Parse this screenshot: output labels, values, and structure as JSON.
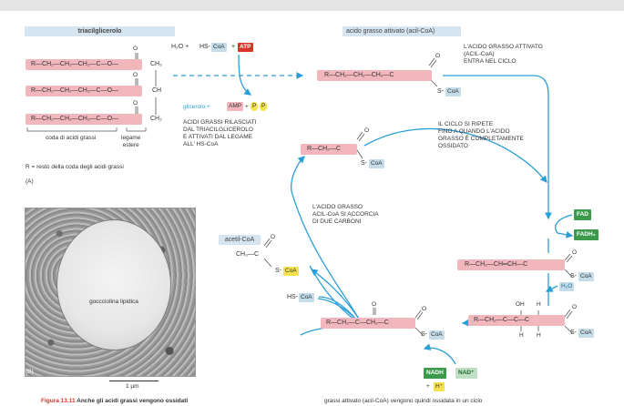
{
  "headers": {
    "triacylglycerol": "triacilglicerolo",
    "activated": "acido grasso attivato (acil-CoA)"
  },
  "tg": {
    "chain": "R—CH₂—CH₂—CH₂—C—O—",
    "ch2_top": "CH₂",
    "ch": "CH",
    "ch2_bottom": "CH₂",
    "o": "O",
    "tail_label": "coda di acidi grassi",
    "ester_label": "legame\nestere",
    "r_note": "R = resto della coda degli acidi grassi",
    "panel_a": "(A)"
  },
  "activation": {
    "h2o": "H₂O +",
    "hs": "HS-",
    "coa": "CoA",
    "plus": "+",
    "atp": "ATP",
    "glycerol": "glicerolo +",
    "amp": "AMP",
    "p": "P",
    "release_text": "ACIDI GRASSI RILASCIATI\nDAL TRIACILGLICEROLO\nE ATTIVATI DAL LEGAME\nALL' HS-CoA"
  },
  "acylcoa": {
    "chain": "R—CH₂—CH₂—CH₂—C",
    "s": "S-",
    "coa": "CoA",
    "o": "O",
    "enter_text": "L'ACIDO GRASSO ATTIVATO\n(ACIL-CoA)\nENTRA NEL CICLO"
  },
  "cycle": {
    "repeat_text": "IL CICLO SI RIPETE\nFINO A QUANDO L'ACIDO\nGRASSO È COMPLETAMENTE\nOSSIDATO",
    "shorten_text": "L'ACIDO GRASSO\nACIL-CoA SI ACCORCIA\nDI DUE CARBONI",
    "short_chain": "R—CH₂—C",
    "fad": "FAD",
    "fadh2": "FADH₂",
    "enoyl_chain": "R—CH₂—CH═CH—C",
    "h2o": "H₂O",
    "hydroxy_chain": "R—CH₂—C—C—C",
    "oh": "OH",
    "h": "H",
    "keto_chain": "R—CH₂—C—CH₂—C",
    "nadh": "NADH",
    "nad": "NAD⁺",
    "hplus_prefix": "+",
    "hplus": "H⁺",
    "hs": "HS-",
    "coa": "CoA"
  },
  "acetyl": {
    "label": "acetil-CoA",
    "chain": "CH₃—C",
    "s": "S-",
    "coa": "CoA",
    "o": "O"
  },
  "micro": {
    "droplet_label": "goccciolina lipidica",
    "panel_b": "(B)",
    "scale": "1 µm"
  },
  "caption": {
    "fig": "Figura 13.11",
    "left": " Anche gli acidi grassi vengono ossidati",
    "right": "grassi attivato (acil-CoA) vengono quindi ossidata in un ciclo"
  },
  "colors": {
    "chain_pink": "#f2b7bd",
    "coa_blue": "#c4dde8",
    "arrow_blue": "#2a9fd6",
    "fad_green": "#3d9a4d",
    "atp_red": "#d9332a",
    "pp_yellow": "#f6e24d"
  }
}
